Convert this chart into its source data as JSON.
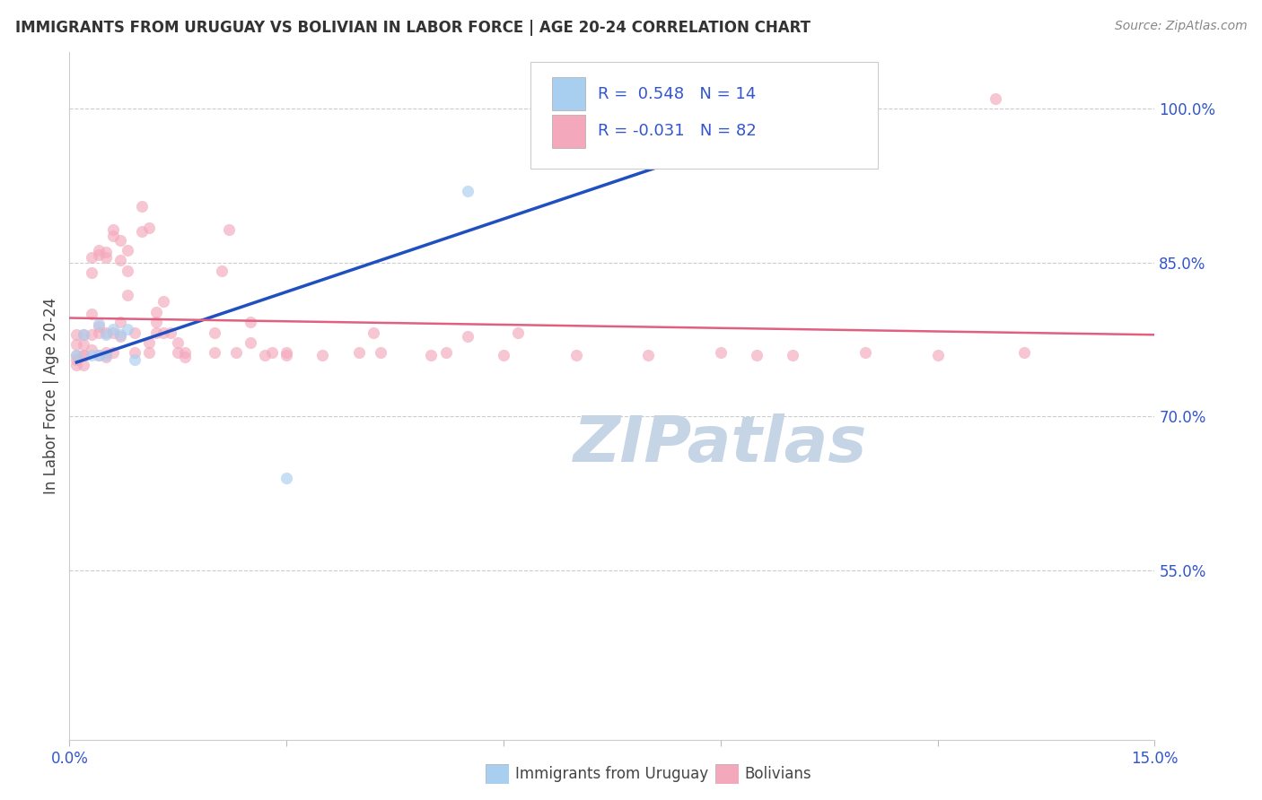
{
  "title": "IMMIGRANTS FROM URUGUAY VS BOLIVIAN IN LABOR FORCE | AGE 20-24 CORRELATION CHART",
  "source": "Source: ZipAtlas.com",
  "ylabel": "In Labor Force | Age 20-24",
  "xlim": [
    0.0,
    0.15
  ],
  "ylim": [
    0.385,
    1.055
  ],
  "r_uruguay": 0.548,
  "n_uruguay": 14,
  "r_bolivia": -0.031,
  "n_bolivia": 82,
  "legend_label_uruguay": "Immigrants from Uruguay",
  "legend_label_bolivia": "Bolivians",
  "ux": [
    0.001,
    0.002,
    0.003,
    0.004,
    0.004,
    0.005,
    0.005,
    0.006,
    0.007,
    0.008,
    0.009,
    0.03,
    0.055,
    0.095
  ],
  "uy": [
    0.76,
    0.78,
    0.76,
    0.79,
    0.76,
    0.78,
    0.76,
    0.785,
    0.78,
    0.785,
    0.755,
    0.64,
    0.92,
    1.005
  ],
  "bx": [
    0.001,
    0.001,
    0.001,
    0.001,
    0.001,
    0.002,
    0.002,
    0.002,
    0.002,
    0.002,
    0.003,
    0.003,
    0.003,
    0.003,
    0.003,
    0.004,
    0.004,
    0.004,
    0.004,
    0.004,
    0.005,
    0.005,
    0.005,
    0.005,
    0.005,
    0.006,
    0.006,
    0.006,
    0.006,
    0.007,
    0.007,
    0.007,
    0.007,
    0.008,
    0.008,
    0.008,
    0.009,
    0.009,
    0.01,
    0.01,
    0.011,
    0.011,
    0.011,
    0.012,
    0.012,
    0.012,
    0.013,
    0.013,
    0.014,
    0.015,
    0.015,
    0.016,
    0.016,
    0.02,
    0.02,
    0.021,
    0.022,
    0.023,
    0.025,
    0.025,
    0.027,
    0.028,
    0.03,
    0.03,
    0.035,
    0.04,
    0.042,
    0.043,
    0.05,
    0.052,
    0.055,
    0.06,
    0.062,
    0.07,
    0.08,
    0.09,
    0.095,
    0.1,
    0.11,
    0.12,
    0.128,
    0.132
  ],
  "by": [
    0.76,
    0.75,
    0.77,
    0.755,
    0.78,
    0.76,
    0.75,
    0.77,
    0.78,
    0.76,
    0.855,
    0.84,
    0.8,
    0.765,
    0.78,
    0.862,
    0.858,
    0.788,
    0.782,
    0.76,
    0.86,
    0.782,
    0.762,
    0.758,
    0.855,
    0.882,
    0.876,
    0.782,
    0.762,
    0.872,
    0.852,
    0.792,
    0.778,
    0.862,
    0.842,
    0.818,
    0.782,
    0.762,
    0.905,
    0.88,
    0.884,
    0.772,
    0.762,
    0.802,
    0.792,
    0.782,
    0.812,
    0.782,
    0.782,
    0.772,
    0.762,
    0.762,
    0.758,
    0.782,
    0.762,
    0.842,
    0.882,
    0.762,
    0.792,
    0.772,
    0.76,
    0.762,
    0.762,
    0.76,
    0.76,
    0.762,
    0.782,
    0.762,
    0.76,
    0.762,
    0.778,
    0.76,
    0.782,
    0.76,
    0.76,
    0.762,
    0.76,
    0.76,
    0.762,
    0.76,
    1.01,
    0.762
  ],
  "color_uruguay": "#A8CEF0",
  "color_bolivia": "#F4A8BC",
  "line_color_uruguay": "#2050C0",
  "line_color_bolivia": "#E06080",
  "marker_size": 90,
  "marker_alpha": 0.65,
  "bg_color": "#ffffff",
  "watermark": "ZIPatlas",
  "watermark_color": "#C5D5E5",
  "legend_text_color": "#3355CC",
  "ytick_pos": [
    0.55,
    0.7,
    0.85,
    1.0
  ],
  "ytick_labels": [
    "55.0%",
    "70.0%",
    "85.0%",
    "100.0%"
  ],
  "xtick_pos": [
    0.0,
    0.03,
    0.06,
    0.09,
    0.12,
    0.15
  ],
  "xtick_labels": [
    "0.0%",
    "",
    "",
    "",
    "",
    "15.0%"
  ]
}
